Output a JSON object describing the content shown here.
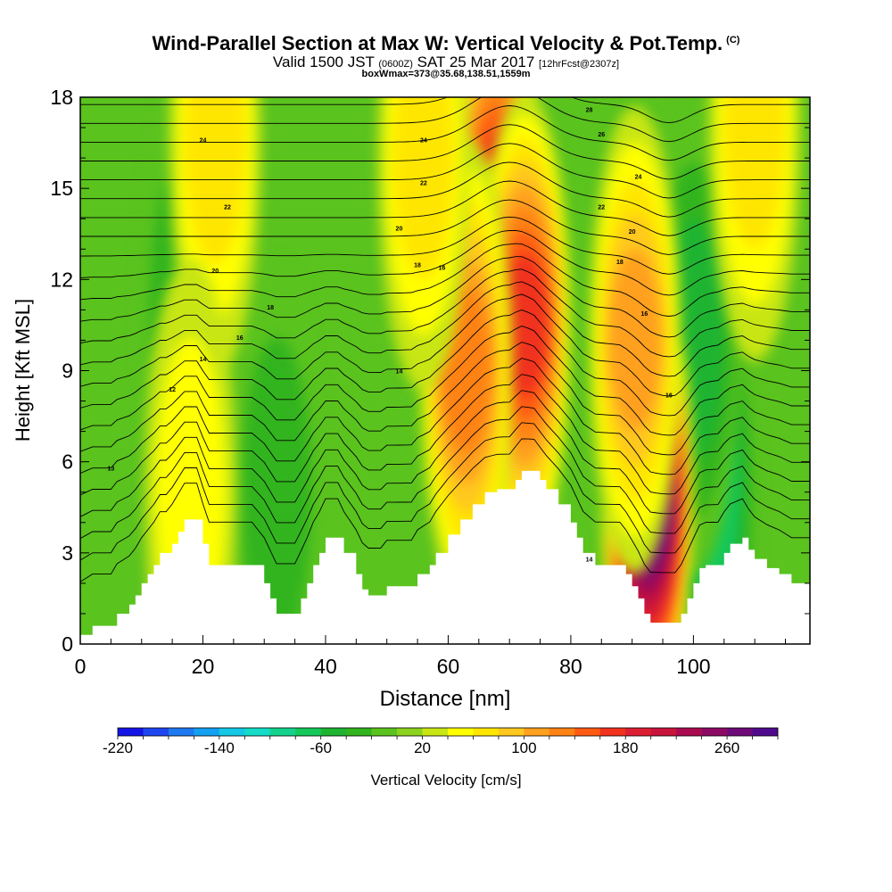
{
  "header": {
    "title": "Wind-Parallel Section at Max W: Vertical Velocity & Pot.Temp.",
    "copyright": "(C)",
    "valid_prefix": "Valid 1500 JST",
    "valid_utc": "(0600Z)",
    "valid_date": "SAT 25 Mar 2017",
    "forecast_info": "[12hrFcst@2307z]",
    "boxwmax": "boxWmax=373@35.68,138.51,1559m"
  },
  "chart_data": {
    "type": "heatmap",
    "xlabel": "Distance [nm]",
    "ylabel": "Height [Kft MSL]",
    "xlim": [
      0,
      119
    ],
    "ylim": [
      0,
      18
    ],
    "xticks": [
      0,
      20,
      40,
      60,
      80,
      100
    ],
    "yticks": [
      0,
      3,
      6,
      9,
      12,
      15,
      18
    ],
    "colorbar": {
      "label": "Vertical Velocity [cm/s]",
      "tick_labels": [
        "-220",
        "-140",
        "-60",
        "20",
        "100",
        "180",
        "260"
      ],
      "tick_values": [
        -220,
        -140,
        -60,
        20,
        100,
        180,
        260
      ],
      "range": [
        -220,
        300
      ],
      "step": 20,
      "colors": [
        "#1414e6",
        "#1e46f0",
        "#1e78f0",
        "#14a0f0",
        "#14c8e6",
        "#14dcc8",
        "#14d28c",
        "#14c85a",
        "#1eb432",
        "#32b41e",
        "#5ac31e",
        "#8cd21e",
        "#c8e614",
        "#ffff00",
        "#ffe600",
        "#ffc81e",
        "#ffa01e",
        "#ff8214",
        "#ff5a14",
        "#f0321e",
        "#dc1e32",
        "#c8143c",
        "#aa0a50",
        "#8c0a64",
        "#6e0a78",
        "#500a8c"
      ]
    },
    "terrain_kft": [
      [
        0,
        0.3
      ],
      [
        2,
        0.6
      ],
      [
        5,
        0.6
      ],
      [
        6,
        1
      ],
      [
        8,
        1.3
      ],
      [
        9,
        1.6
      ],
      [
        10,
        2
      ],
      [
        11,
        2.3
      ],
      [
        12,
        2.6
      ],
      [
        13,
        3
      ],
      [
        14,
        3
      ],
      [
        15,
        3.3
      ],
      [
        16,
        3.7
      ],
      [
        17,
        4.1
      ],
      [
        19,
        4.1
      ],
      [
        20,
        3.3
      ],
      [
        21,
        2.6
      ],
      [
        28,
        2.6
      ],
      [
        30,
        2
      ],
      [
        31,
        1.5
      ],
      [
        32,
        1
      ],
      [
        35,
        1
      ],
      [
        36,
        1.5
      ],
      [
        37,
        2
      ],
      [
        38,
        2.6
      ],
      [
        39,
        3
      ],
      [
        40,
        3.5
      ],
      [
        42,
        3.5
      ],
      [
        43,
        3
      ],
      [
        45,
        2.3
      ],
      [
        46,
        1.8
      ],
      [
        47,
        1.6
      ],
      [
        49,
        1.6
      ],
      [
        50,
        1.9
      ],
      [
        54,
        1.9
      ],
      [
        55,
        2.3
      ],
      [
        57,
        2.6
      ],
      [
        58,
        3
      ],
      [
        60,
        3.6
      ],
      [
        62,
        4.1
      ],
      [
        64,
        4.6
      ],
      [
        66,
        5
      ],
      [
        68,
        5.1
      ],
      [
        70,
        5.1
      ],
      [
        71,
        5.4
      ],
      [
        72,
        5.7
      ],
      [
        74,
        5.7
      ],
      [
        75,
        5.4
      ],
      [
        76,
        5.1
      ],
      [
        78,
        4.6
      ],
      [
        80,
        4
      ],
      [
        81,
        3.5
      ],
      [
        82,
        3
      ],
      [
        84,
        2.6
      ],
      [
        88,
        2.6
      ],
      [
        89,
        2.3
      ],
      [
        90,
        1.9
      ],
      [
        91,
        1.5
      ],
      [
        92,
        1
      ],
      [
        93,
        0.7
      ],
      [
        97,
        0.7
      ],
      [
        98,
        1
      ],
      [
        99,
        1.5
      ],
      [
        100,
        2
      ],
      [
        101,
        2.5
      ],
      [
        102,
        2.6
      ],
      [
        104,
        2.6
      ],
      [
        105,
        3
      ],
      [
        106,
        3.3
      ],
      [
        108,
        3.5
      ],
      [
        109,
        3.1
      ],
      [
        110,
        2.8
      ],
      [
        112,
        2.5
      ],
      [
        114,
        2.3
      ],
      [
        116,
        2
      ],
      [
        119,
        2
      ]
    ],
    "updraft_cores": [
      {
        "x": 92.5,
        "y": 5.0,
        "peak": 300
      },
      {
        "x": 68,
        "y": 14.5,
        "peak": 160
      },
      {
        "x": 72.5,
        "y": 10.5,
        "peak": 160
      },
      {
        "x": 63,
        "y": 9.0,
        "peak": 130
      },
      {
        "x": 90.5,
        "y": 10.0,
        "peak": 100
      },
      {
        "x": 22,
        "y": 16.5,
        "peak": 60
      },
      {
        "x": 18,
        "y": 5.0,
        "peak": 50
      },
      {
        "x": 56,
        "y": 16.0,
        "peak": 60
      },
      {
        "x": 110,
        "y": 17.0,
        "peak": 60
      }
    ],
    "downdraft_cores": [
      {
        "x": 103,
        "y": 5.0,
        "peak": -80
      },
      {
        "x": 100,
        "y": 10.0,
        "peak": -60
      },
      {
        "x": 32,
        "y": 5.0,
        "peak": -50
      },
      {
        "x": 17,
        "y": 11.0,
        "peak": -50
      }
    ],
    "contour_labels": [
      {
        "x": 5,
        "y": 5.8,
        "text": "13"
      },
      {
        "x": 15,
        "y": 8.4,
        "text": "12"
      },
      {
        "x": 20,
        "y": 9.4,
        "text": "14"
      },
      {
        "x": 26,
        "y": 10.1,
        "text": "16"
      },
      {
        "x": 31,
        "y": 11.1,
        "text": "18"
      },
      {
        "x": 22,
        "y": 12.3,
        "text": "20"
      },
      {
        "x": 24,
        "y": 14.4,
        "text": "22"
      },
      {
        "x": 20,
        "y": 16.6,
        "text": "24"
      },
      {
        "x": 52,
        "y": 13.7,
        "text": "20"
      },
      {
        "x": 55,
        "y": 12.5,
        "text": "18"
      },
      {
        "x": 56,
        "y": 15.2,
        "text": "22"
      },
      {
        "x": 56,
        "y": 16.6,
        "text": "24"
      },
      {
        "x": 59,
        "y": 12.4,
        "text": "16"
      },
      {
        "x": 52,
        "y": 9.0,
        "text": "14"
      },
      {
        "x": 85,
        "y": 16.8,
        "text": "26"
      },
      {
        "x": 83,
        "y": 17.6,
        "text": "28"
      },
      {
        "x": 91,
        "y": 15.4,
        "text": "24"
      },
      {
        "x": 85,
        "y": 14.4,
        "text": "22"
      },
      {
        "x": 90,
        "y": 13.6,
        "text": "20"
      },
      {
        "x": 88,
        "y": 12.6,
        "text": "18"
      },
      {
        "x": 92,
        "y": 10.9,
        "text": "16"
      },
      {
        "x": 96,
        "y": 8.2,
        "text": "16"
      },
      {
        "x": 83,
        "y": 2.8,
        "text": "14"
      }
    ]
  }
}
